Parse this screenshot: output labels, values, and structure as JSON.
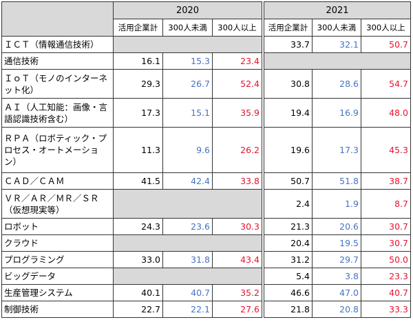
{
  "years": [
    "2020",
    "2021"
  ],
  "subheaders": [
    "活用企業計",
    "300人未満",
    "300人以上"
  ],
  "rows": [
    {
      "label": "ＩＣＴ（情報通信技術）",
      "y2020": [
        "",
        "",
        ""
      ],
      "y2021": [
        "33.7",
        "32.1",
        "50.7"
      ]
    },
    {
      "label": "通信技術",
      "y2020": [
        "16.1",
        "15.3",
        "23.4"
      ],
      "y2021": [
        "",
        "",
        ""
      ]
    },
    {
      "label": "ＩｏＴ（モノのインターネット化）",
      "y2020": [
        "29.3",
        "26.7",
        "52.4"
      ],
      "y2021": [
        "30.8",
        "28.6",
        "54.7"
      ]
    },
    {
      "label": "ＡＩ（人工知能：画像・言語認識技術含む）",
      "y2020": [
        "17.3",
        "15.1",
        "35.9"
      ],
      "y2021": [
        "19.4",
        "16.9",
        "48.0"
      ]
    },
    {
      "label": "ＲＰＡ（ロボティック・プロセス・オートメーション）",
      "y2020": [
        "11.3",
        "9.6",
        "26.2"
      ],
      "y2021": [
        "19.6",
        "17.3",
        "45.3"
      ]
    },
    {
      "label": "ＣＡＤ／ＣＡＭ",
      "y2020": [
        "41.5",
        "42.4",
        "33.8"
      ],
      "y2021": [
        "50.7",
        "51.8",
        "38.7"
      ]
    },
    {
      "label": "ＶＲ／ＡＲ／ＭＲ／ＳＲ（仮想現実等）",
      "y2020": [
        "",
        "",
        ""
      ],
      "y2021": [
        "2.4",
        "1.9",
        "8.7"
      ]
    },
    {
      "label": "ロボット",
      "y2020": [
        "24.3",
        "23.6",
        "30.3"
      ],
      "y2021": [
        "21.3",
        "20.6",
        "30.7"
      ]
    },
    {
      "label": "クラウド",
      "y2020": [
        "",
        "",
        ""
      ],
      "y2021": [
        "20.4",
        "19.5",
        "30.7"
      ]
    },
    {
      "label": "プログラミング",
      "y2020": [
        "33.0",
        "31.8",
        "43.4"
      ],
      "y2021": [
        "31.2",
        "29.7",
        "50.0"
      ]
    },
    {
      "label": "ビッグデータ",
      "y2020": [
        "",
        "",
        ""
      ],
      "y2021": [
        "5.4",
        "3.8",
        "23.3"
      ]
    },
    {
      "label": "生産管理システム",
      "y2020": [
        "40.1",
        "40.7",
        "35.2"
      ],
      "y2021": [
        "46.6",
        "47.0",
        "40.7"
      ]
    },
    {
      "label": "制御技術",
      "y2020": [
        "22.7",
        "22.1",
        "27.6"
      ],
      "y2021": [
        "21.8",
        "20.8",
        "33.3"
      ]
    }
  ],
  "colors": {
    "total": "#000000",
    "under300": "#4472c4",
    "over300": "#e8112d",
    "empty_fill": "#d9d9d9"
  }
}
